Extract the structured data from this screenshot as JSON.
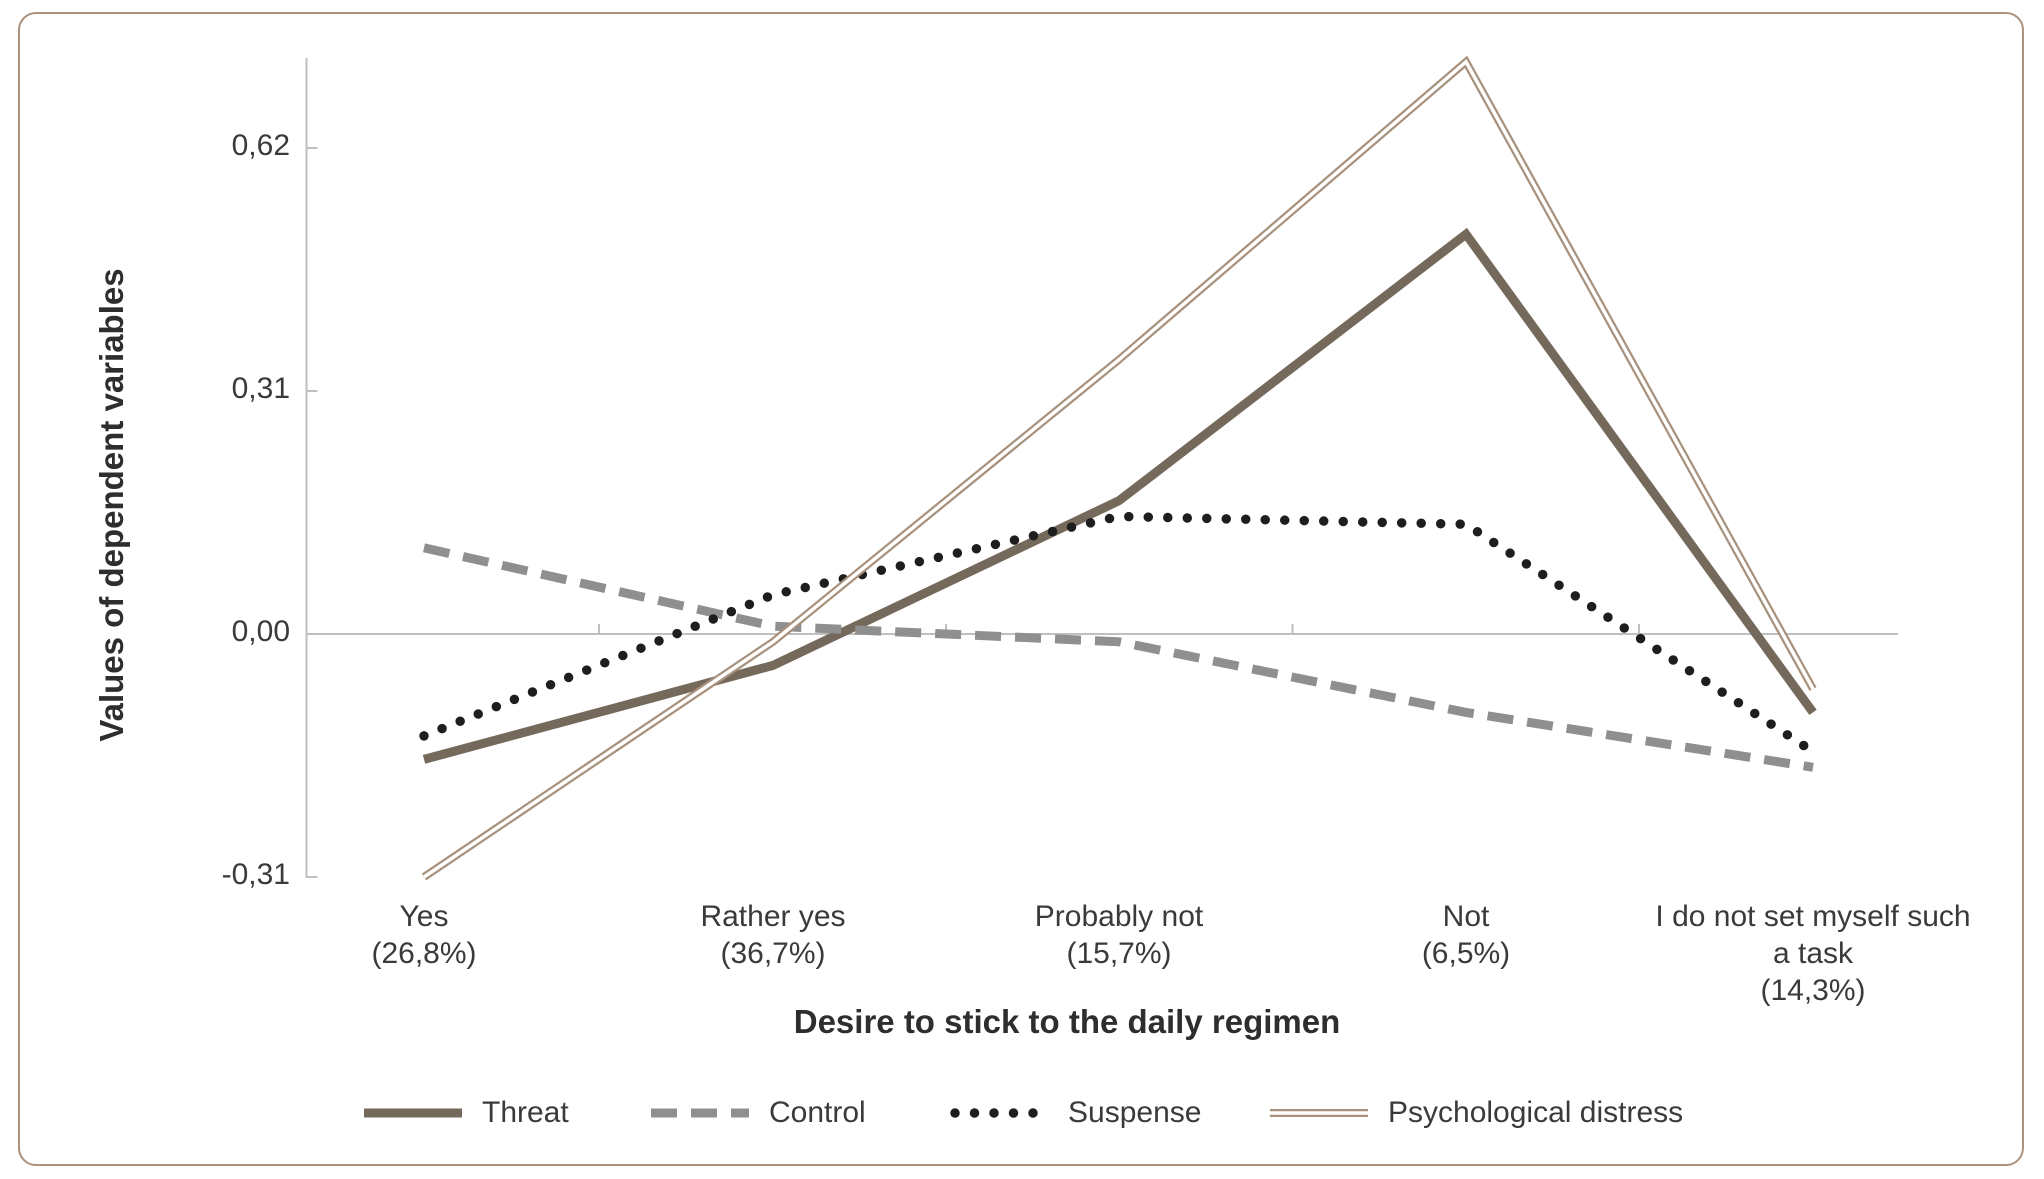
{
  "figure": {
    "border_color": "#AB927E",
    "background_color": "#FFFFFF",
    "axis_color": "#BFBFBF",
    "text_color": "#3A3A3A"
  },
  "chart_data": {
    "type": "line",
    "title": "",
    "xlabel": "Desire to stick to the daily regimen",
    "ylabel": "Values of dependent variables",
    "categories": [
      "Yes",
      "Rather yes",
      "Probably not",
      "Not",
      "I do not set myself such a task"
    ],
    "category_sublabels": [
      "(26,8%)",
      "(36,7%)",
      "(15,7%)",
      "(6,5%)",
      "(14,3%)"
    ],
    "y_ticks": [
      {
        "label": "0,62",
        "value": 0.62
      },
      {
        "label": "0,31",
        "value": 0.31
      },
      {
        "label": "0,00",
        "value": 0.0
      },
      {
        "label": "-0,31",
        "value": -0.31
      }
    ],
    "ylim": [
      -0.31,
      0.75
    ],
    "grid": "zero-line-only",
    "legend_position": "bottom",
    "series": [
      {
        "name": "Threat",
        "style": "solid",
        "color": "#75695B",
        "values": [
          -0.16,
          -0.04,
          0.17,
          0.51,
          -0.1
        ]
      },
      {
        "name": "Control",
        "style": "dashed",
        "color": "#8F8F8F",
        "values": [
          0.11,
          0.01,
          -0.01,
          -0.1,
          -0.17
        ]
      },
      {
        "name": "Suspense",
        "style": "dotted",
        "color": "#1E1E1E",
        "values": [
          -0.13,
          0.05,
          0.15,
          0.14,
          -0.15
        ]
      },
      {
        "name": "Psychological distress",
        "style": "double",
        "color": "#A8917D",
        "values": [
          -0.31,
          -0.01,
          0.35,
          0.73,
          -0.07
        ]
      }
    ]
  }
}
